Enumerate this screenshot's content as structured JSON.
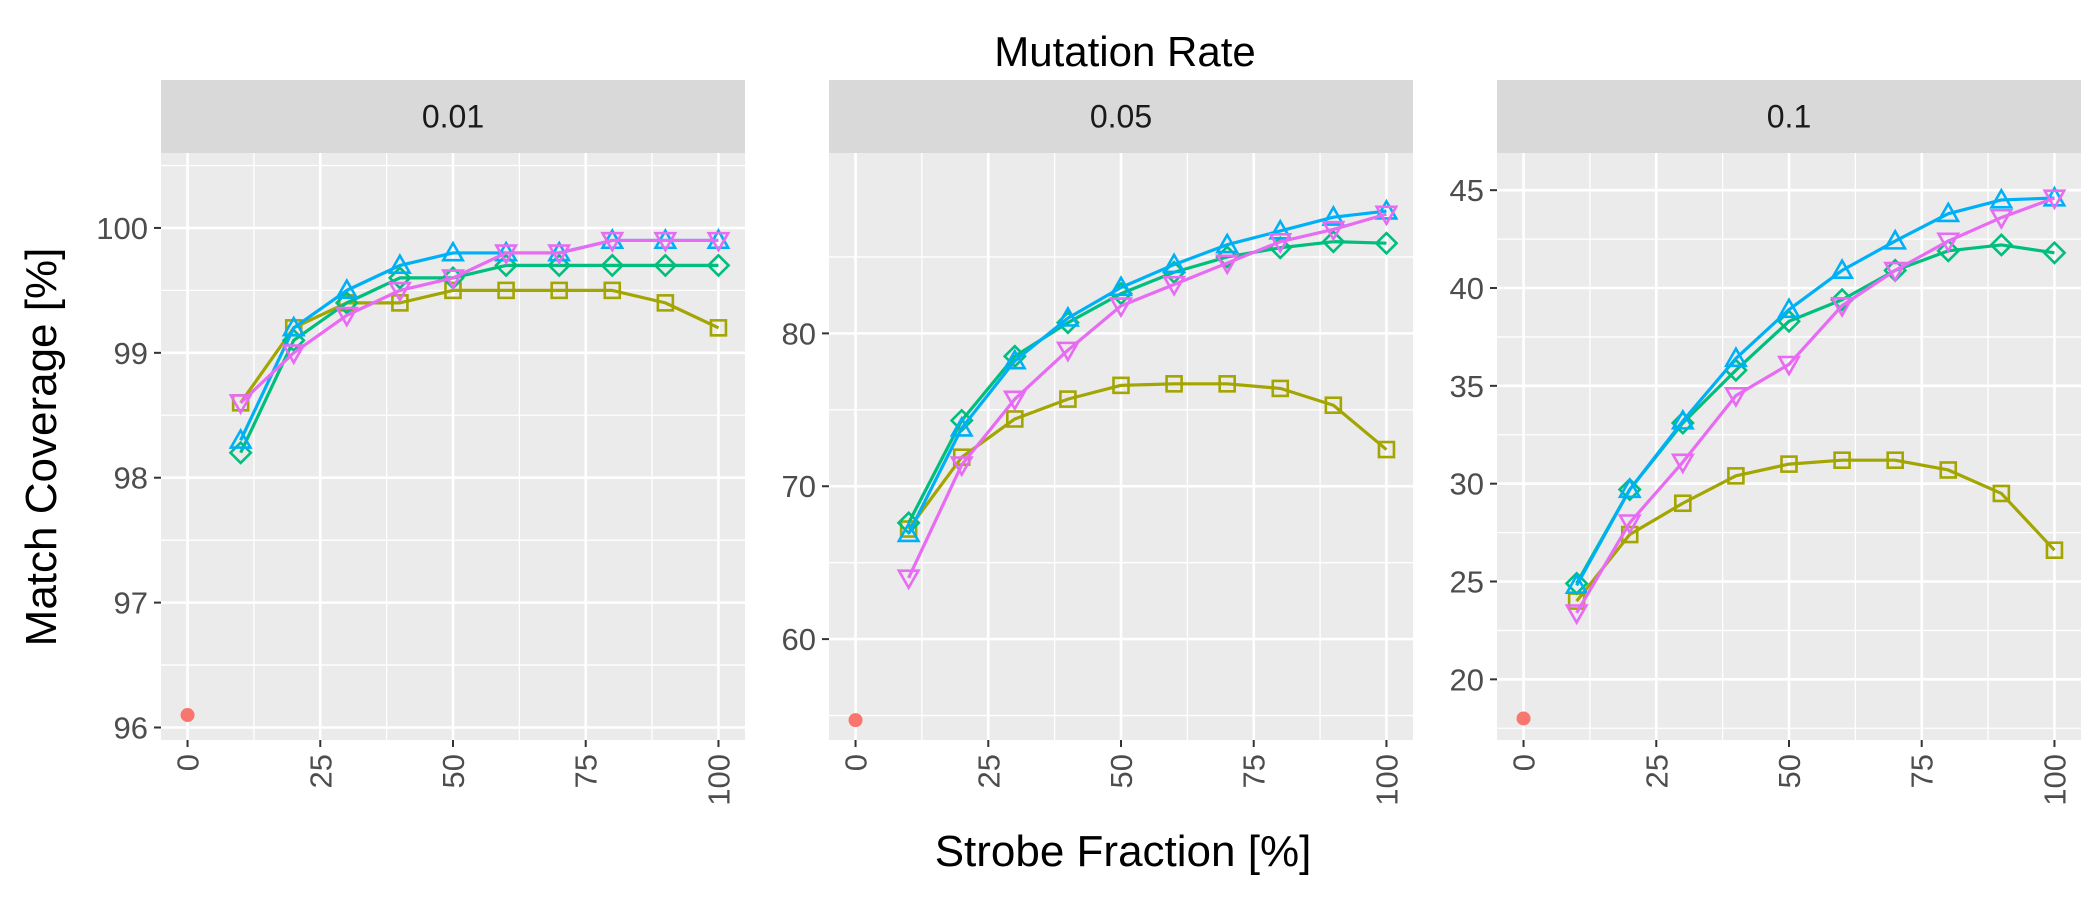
{
  "chart_data": {
    "type": "line",
    "title": "Mutation Rate",
    "xlabel": "Strobe Fraction [%]",
    "ylabel": "Match Coverage [%]",
    "grid": true,
    "legend": "none",
    "x_ticks": [
      0,
      25,
      50,
      75,
      100
    ],
    "series_colors": [
      "#A3A500",
      "#00BF7D",
      "#00B0F6",
      "#E76BF3"
    ],
    "series_markers": [
      "square",
      "diamond",
      "triangle-up",
      "triangle-down"
    ],
    "baseline_color": "#F8766D",
    "panels": [
      {
        "label": "0.01",
        "xlim": [
          -5,
          105
        ],
        "ylim": [
          95.9,
          100.6
        ],
        "y_ticks": [
          96,
          97,
          98,
          99,
          100
        ],
        "baseline": {
          "x": 0,
          "y": 96.1
        },
        "x": [
          10,
          20,
          30,
          40,
          50,
          60,
          70,
          80,
          90,
          100
        ],
        "series": [
          {
            "values": [
              98.6,
              99.2,
              99.4,
              99.4,
              99.5,
              99.5,
              99.5,
              99.5,
              99.4,
              99.2
            ]
          },
          {
            "values": [
              98.2,
              99.1,
              99.4,
              99.6,
              99.6,
              99.7,
              99.7,
              99.7,
              99.7,
              99.7
            ]
          },
          {
            "values": [
              98.3,
              99.2,
              99.5,
              99.7,
              99.8,
              99.8,
              99.8,
              99.9,
              99.9,
              99.9
            ]
          },
          {
            "values": [
              98.6,
              99.0,
              99.3,
              99.5,
              99.6,
              99.8,
              99.8,
              99.9,
              99.9,
              99.9
            ]
          }
        ]
      },
      {
        "label": "0.05",
        "xlim": [
          -5,
          105
        ],
        "ylim": [
          53.4,
          91.8
        ],
        "y_ticks": [
          60,
          70,
          80
        ],
        "baseline": {
          "x": 0,
          "y": 54.7
        },
        "x": [
          10,
          20,
          30,
          40,
          50,
          60,
          70,
          80,
          90,
          100
        ],
        "series": [
          {
            "values": [
              67.2,
              71.9,
              74.4,
              75.7,
              76.6,
              76.7,
              76.7,
              76.4,
              75.3,
              72.4
            ]
          },
          {
            "values": [
              67.6,
              74.3,
              78.5,
              80.7,
              82.6,
              84.0,
              85.0,
              85.6,
              86.0,
              85.9
            ]
          },
          {
            "values": [
              66.9,
              73.8,
              78.2,
              81.0,
              83.0,
              84.5,
              85.8,
              86.7,
              87.6,
              88.0
            ]
          },
          {
            "values": [
              64.0,
              71.4,
              75.7,
              78.9,
              81.8,
              83.2,
              84.6,
              86.0,
              86.8,
              87.8
            ]
          }
        ]
      },
      {
        "label": "0.1",
        "xlim": [
          -5,
          105
        ],
        "ylim": [
          16.9,
          46.9
        ],
        "y_ticks": [
          20,
          25,
          30,
          35,
          40,
          45
        ],
        "baseline": {
          "x": 0,
          "y": 18.0
        },
        "x": [
          10,
          20,
          30,
          40,
          50,
          60,
          70,
          80,
          90,
          100
        ],
        "series": [
          {
            "values": [
              24.0,
              27.4,
              29.0,
              30.4,
              31.0,
              31.2,
              31.2,
              30.7,
              29.5,
              26.6
            ]
          },
          {
            "values": [
              24.9,
              29.7,
              33.1,
              35.8,
              38.3,
              39.4,
              40.9,
              41.9,
              42.2,
              41.8
            ]
          },
          {
            "values": [
              24.8,
              29.7,
              33.2,
              36.4,
              38.9,
              40.9,
              42.4,
              43.8,
              44.5,
              44.6
            ]
          },
          {
            "values": [
              23.4,
              28.0,
              31.1,
              34.5,
              36.1,
              39.1,
              40.9,
              42.4,
              43.6,
              44.6
            ]
          }
        ]
      }
    ]
  }
}
